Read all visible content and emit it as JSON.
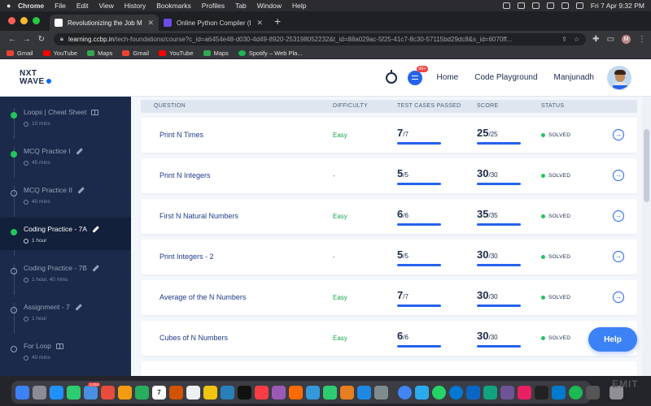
{
  "menubar": {
    "app": "Chrome",
    "items": [
      "File",
      "Edit",
      "View",
      "History",
      "Bookmarks",
      "Profiles",
      "Tab",
      "Window",
      "Help"
    ],
    "datetime": "Fri 7 Apr  9:32 PM"
  },
  "browser": {
    "tabs": [
      {
        "title": "Revolutionizing the Job Marke",
        "active": true,
        "fav_color": "#ffffff"
      },
      {
        "title": "Online Python Compiler (Interp",
        "active": false,
        "fav_color": "#6b4ce6"
      }
    ],
    "new_tab": "+",
    "url_host": "learning.ccbp.in",
    "url_path": "/tech-foundations/course?c_id=a6454e48-d030-4d49-8920-253198052232&t_id=88a029ac-5f25-41c7-8c30-57115bd29dc8&s_id=6070ff...",
    "profile_initial": "M",
    "bookmarks": [
      {
        "label": "Gmail",
        "color": "#ea4335"
      },
      {
        "label": "YouTube",
        "color": "#ff0000"
      },
      {
        "label": "Maps",
        "color": "#34a853"
      },
      {
        "label": "Gmail",
        "color": "#ea4335"
      },
      {
        "label": "YouTube",
        "color": "#ff0000"
      },
      {
        "label": "Maps",
        "color": "#34a853"
      },
      {
        "label": "Spotify – Web Pla...",
        "color": "#1db954"
      }
    ]
  },
  "header": {
    "logo_line1": "NXT",
    "logo_line2": "WAVE",
    "notification_badge": "99+",
    "nav_home": "Home",
    "nav_playground": "Code Playground",
    "user_name": "Manjunadh"
  },
  "sidebar": {
    "items": [
      {
        "title": "Loops | Cheat Sheet",
        "duration": "10 mins",
        "icon": "book-icon",
        "done": true,
        "active": false
      },
      {
        "title": "MCQ Practice I",
        "duration": "45 mins",
        "icon": "pencil-icon",
        "done": true,
        "active": false
      },
      {
        "title": "MCQ Practice II",
        "duration": "40 mins",
        "icon": "pencil-icon",
        "done": false,
        "active": false
      },
      {
        "title": "Coding Practice - 7A",
        "duration": "1 hour",
        "icon": "pencil-icon",
        "done": true,
        "active": true
      },
      {
        "title": "Coding Practice - 7B",
        "duration": "1 hour, 40 mins",
        "icon": "pencil-icon",
        "done": false,
        "active": false
      },
      {
        "title": "Assignment - 7",
        "duration": "1 hour",
        "icon": "pencil-icon",
        "done": false,
        "active": false
      },
      {
        "title": "For Loop",
        "duration": "40 mins",
        "icon": "book-icon",
        "done": false,
        "active": false
      }
    ]
  },
  "table": {
    "headers": {
      "question": "QUESTION",
      "difficulty": "DIFFICULTY",
      "tests": "TEST CASES PASSED",
      "score": "SCORE",
      "status": "STATUS"
    },
    "rows": [
      {
        "question": "Print N Times",
        "difficulty": "Easy",
        "tests_passed": "7",
        "tests_total": "/7",
        "score": "25",
        "score_total": "/25",
        "status": "SOLVED"
      },
      {
        "question": "Print N Integers",
        "difficulty": "-",
        "tests_passed": "5",
        "tests_total": "/5",
        "score": "30",
        "score_total": "/30",
        "status": "SOLVED"
      },
      {
        "question": "First N Natural Numbers",
        "difficulty": "Easy",
        "tests_passed": "6",
        "tests_total": "/6",
        "score": "35",
        "score_total": "/35",
        "status": "SOLVED"
      },
      {
        "question": "Print Integers - 2",
        "difficulty": "-",
        "tests_passed": "5",
        "tests_total": "/5",
        "score": "30",
        "score_total": "/30",
        "status": "SOLVED"
      },
      {
        "question": "Average of the N Numbers",
        "difficulty": "Easy",
        "tests_passed": "7",
        "tests_total": "/7",
        "score": "30",
        "score_total": "/30",
        "status": "SOLVED"
      },
      {
        "question": "Cubes of N Numbers",
        "difficulty": "Easy",
        "tests_passed": "6",
        "tests_total": "/6",
        "score": "30",
        "score_total": "/30",
        "status": "SOLVED"
      }
    ]
  },
  "help_label": "Help",
  "dock": {
    "mail_badge": "1,016",
    "calendar_day": "7",
    "wallpaper_text": "EMIT"
  },
  "colors": {
    "sidebar_bg": "#1b2a4a",
    "accent": "#2563eb",
    "easy": "#16a34a",
    "solved": "#22c55e"
  }
}
